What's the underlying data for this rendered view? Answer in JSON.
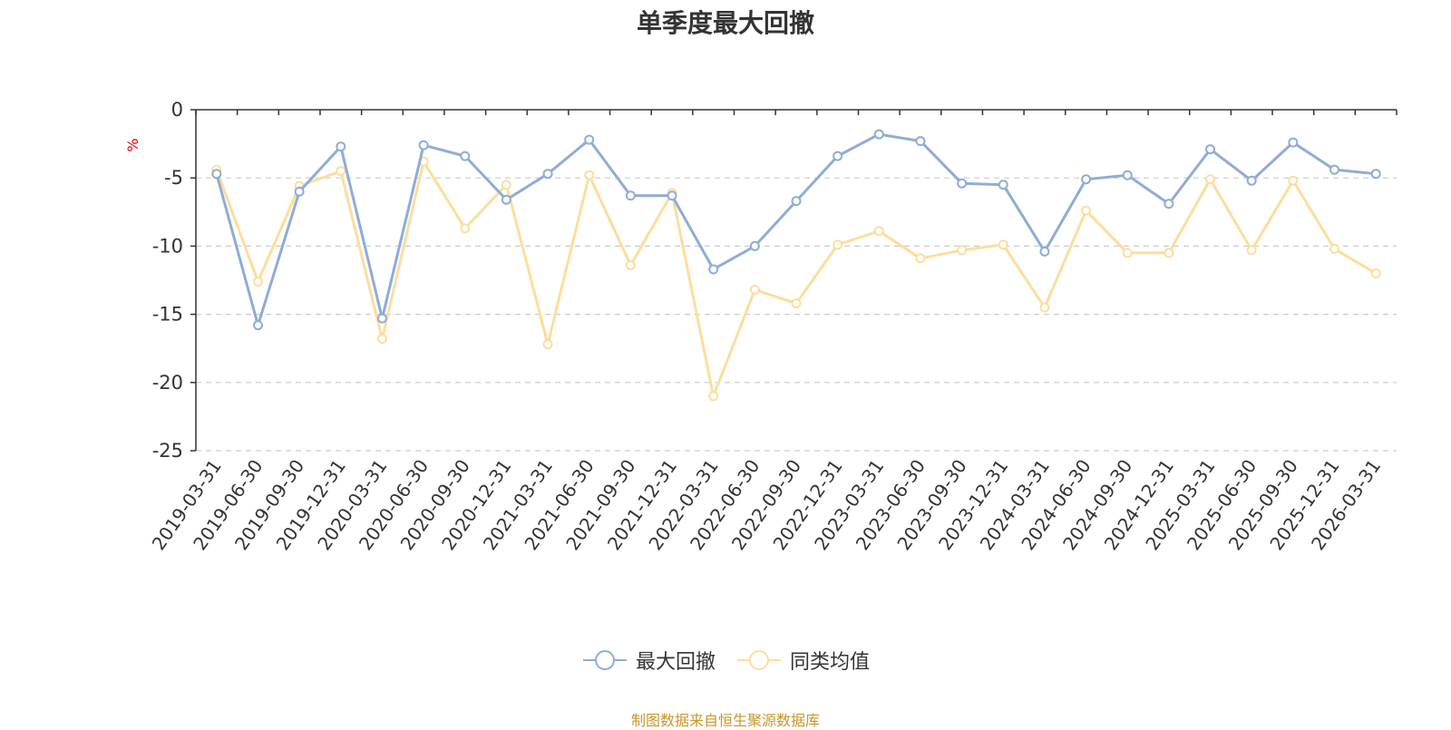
{
  "chart_data": {
    "type": "line",
    "title": "单季度最大回撤",
    "ylabel": "%",
    "ylim": [
      -25,
      0
    ],
    "yticks": [
      0,
      -5,
      -10,
      -15,
      -20,
      -25
    ],
    "grid": "horizontal dashed",
    "legend_position": "bottom",
    "categories": [
      "2019-03-31",
      "2019-06-30",
      "2019-09-30",
      "2019-12-31",
      "2020-03-31",
      "2020-06-30",
      "2020-09-30",
      "2020-12-31",
      "2021-03-31",
      "2021-06-30",
      "2021-09-30",
      "2021-12-31",
      "2022-03-31",
      "2022-06-30",
      "2022-09-30",
      "2022-12-31",
      "2023-03-31",
      "2023-06-30",
      "2023-09-30",
      "2023-12-31",
      "2024-03-31",
      "2024-06-30",
      "2024-09-30",
      "2024-12-31",
      "2025-03-31",
      "2025-06-30",
      "2025-09-30",
      "2025-12-31",
      "2026-03-31"
    ],
    "series": [
      {
        "name": "最大回撤",
        "color": "#8eacd8",
        "values": [
          -4.7,
          -15.8,
          -6.0,
          -2.7,
          -15.3,
          -2.6,
          -3.4,
          -6.6,
          -4.7,
          -2.2,
          -6.3,
          -6.3,
          -11.7,
          -10.0,
          -6.7,
          -3.4,
          -1.8,
          -2.3,
          -5.4,
          -5.5,
          -10.4,
          -5.1,
          -4.8,
          -6.9,
          -2.9,
          -5.2,
          -2.4,
          -4.4,
          -4.7
        ]
      },
      {
        "name": "同类均值",
        "color": "#fddd9e",
        "values": [
          -4.4,
          -12.6,
          -5.6,
          -4.5,
          -16.8,
          -3.8,
          -8.7,
          -5.5,
          -17.2,
          -4.8,
          -11.4,
          -6.1,
          -21.0,
          -13.2,
          -14.2,
          -9.9,
          -8.9,
          -10.9,
          -10.3,
          -9.9,
          -14.5,
          -7.4,
          -10.5,
          -10.5,
          -5.1,
          -10.3,
          -5.2,
          -10.2,
          -12.0
        ]
      }
    ]
  },
  "source_note": "制图数据来自恒生聚源数据库"
}
